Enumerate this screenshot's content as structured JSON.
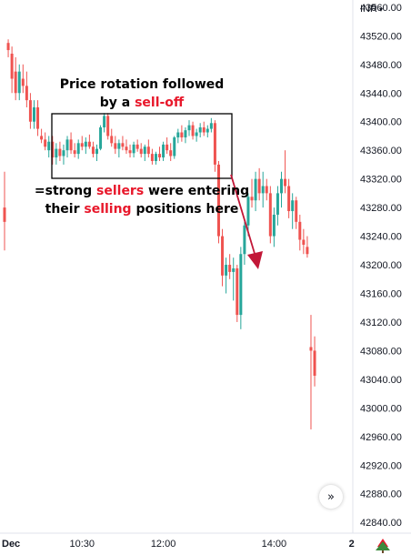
{
  "currency_label": "INR",
  "colors": {
    "up": "#26a69a",
    "down": "#ef5350",
    "annotation": "#c21737",
    "grid": "#f0f3fa",
    "box": "#000000"
  },
  "annotations": {
    "top_line1": "Price rotation followed",
    "top_line2_prefix": "by a ",
    "top_line2_red": "sell-off",
    "bottom_line1_prefix": "=strong ",
    "bottom_line1_red": "sellers",
    "bottom_line1_suffix": " were entering",
    "bottom_line2_prefix": "their ",
    "bottom_line2_red": "selling",
    "bottom_line2_suffix": " positions here"
  },
  "goto_realtime_icon": "double-chevron-right-icon",
  "logo_icon": "tree-icon",
  "chart_data": {
    "type": "candlestick",
    "y_ticks": [
      43560,
      43520,
      43480,
      43440,
      43400,
      43360,
      43320,
      43280,
      43240,
      43200,
      43160,
      43120,
      43080,
      43040,
      43000,
      42960,
      42920,
      42880,
      42840
    ],
    "y_tick_labels": [
      "43560.00",
      "43520.00",
      "43480.00",
      "43440.00",
      "43400.00",
      "43360.00",
      "43320.00",
      "43280.00",
      "43240.00",
      "43200.00",
      "43160.00",
      "43120.00",
      "43080.00",
      "43040.00",
      "43000.00",
      "42960.00",
      "42920.00",
      "42880.00",
      "42840.00"
    ],
    "ylim": [
      42825,
      43570
    ],
    "x_ticks": [
      {
        "label": "Dec",
        "index": 0
      },
      {
        "label": "10:30",
        "index": 21
      },
      {
        "label": "12:00",
        "index": 43
      },
      {
        "label": "14:00",
        "index": 73
      },
      {
        "label": "2",
        "index": 94
      }
    ],
    "grid": false,
    "candles": [
      [
        43280,
        43330,
        43220,
        43260
      ],
      [
        43510,
        43515,
        43490,
        43500
      ],
      [
        43495,
        43505,
        43440,
        43460
      ],
      [
        43470,
        43490,
        43430,
        43440
      ],
      [
        43440,
        43480,
        43430,
        43470
      ],
      [
        43460,
        43480,
        43440,
        43450
      ],
      [
        43450,
        43470,
        43420,
        43430
      ],
      [
        43430,
        43440,
        43390,
        43400
      ],
      [
        43400,
        43430,
        43390,
        43420
      ],
      [
        43420,
        43430,
        43380,
        43390
      ],
      [
        43380,
        43390,
        43370,
        43375
      ],
      [
        43375,
        43385,
        43360,
        43365
      ],
      [
        43360,
        43380,
        43350,
        43372
      ],
      [
        43372,
        43380,
        43340,
        43350
      ],
      [
        43350,
        43370,
        43340,
        43362
      ],
      [
        43362,
        43372,
        43345,
        43352
      ],
      [
        43352,
        43368,
        43340,
        43360
      ],
      [
        43360,
        43380,
        43350,
        43375
      ],
      [
        43375,
        43385,
        43355,
        43360
      ],
      [
        43360,
        43370,
        43350,
        43355
      ],
      [
        43355,
        43375,
        43348,
        43370
      ],
      [
        43370,
        43380,
        43360,
        43365
      ],
      [
        43365,
        43378,
        43355,
        43372
      ],
      [
        43372,
        43382,
        43362,
        43365
      ],
      [
        43365,
        43372,
        43350,
        43355
      ],
      [
        43355,
        43368,
        43345,
        43362
      ],
      [
        43362,
        43395,
        43360,
        43392
      ],
      [
        43392,
        43412,
        43385,
        43408
      ],
      [
        43408,
        43412,
        43375,
        43380
      ],
      [
        43380,
        43390,
        43365,
        43370
      ],
      [
        43370,
        43380,
        43355,
        43362
      ],
      [
        43362,
        43375,
        43350,
        43370
      ],
      [
        43370,
        43380,
        43360,
        43365
      ],
      [
        43365,
        43375,
        43355,
        43360
      ],
      [
        43360,
        43368,
        43350,
        43356
      ],
      [
        43356,
        43372,
        43350,
        43368
      ],
      [
        43368,
        43375,
        43358,
        43362
      ],
      [
        43362,
        43370,
        43350,
        43355
      ],
      [
        43355,
        43368,
        43345,
        43365
      ],
      [
        43365,
        43375,
        43350,
        43355
      ],
      [
        43355,
        43362,
        43340,
        43345
      ],
      [
        43345,
        43358,
        43340,
        43355
      ],
      [
        43355,
        43365,
        43345,
        43350
      ],
      [
        43350,
        43372,
        43345,
        43368
      ],
      [
        43368,
        43378,
        43355,
        43360
      ],
      [
        43360,
        43370,
        43345,
        43352
      ],
      [
        43352,
        43380,
        43348,
        43378
      ],
      [
        43378,
        43390,
        43370,
        43385
      ],
      [
        43385,
        43395,
        43372,
        43378
      ],
      [
        43378,
        43392,
        43370,
        43388
      ],
      [
        43388,
        43402,
        43380,
        43395
      ],
      [
        43395,
        43400,
        43375,
        43380
      ],
      [
        43380,
        43390,
        43372,
        43385
      ],
      [
        43385,
        43398,
        43378,
        43392
      ],
      [
        43392,
        43400,
        43380,
        43385
      ],
      [
        43385,
        43395,
        43378,
        43390
      ],
      [
        43390,
        43405,
        43385,
        43398
      ],
      [
        43398,
        43402,
        43330,
        43340
      ],
      [
        43340,
        43345,
        43230,
        43240
      ],
      [
        43240,
        43250,
        43170,
        43185
      ],
      [
        43185,
        43210,
        43160,
        43200
      ],
      [
        43200,
        43215,
        43180,
        43190
      ],
      [
        43190,
        43210,
        43150,
        43195
      ],
      [
        43195,
        43200,
        43120,
        43130
      ],
      [
        43130,
        43225,
        43110,
        43215
      ],
      [
        43215,
        43260,
        43200,
        43255
      ],
      [
        43255,
        43300,
        43240,
        43295
      ],
      [
        43295,
        43320,
        43280,
        43290
      ],
      [
        43290,
        43330,
        43275,
        43320
      ],
      [
        43320,
        43335,
        43290,
        43300
      ],
      [
        43300,
        43330,
        43280,
        43310
      ],
      [
        43310,
        43320,
        43290,
        43300
      ],
      [
        43300,
        43310,
        43230,
        43240
      ],
      [
        43240,
        43280,
        43225,
        43270
      ],
      [
        43270,
        43310,
        43255,
        43300
      ],
      [
        43300,
        43330,
        43280,
        43320
      ],
      [
        43320,
        43360,
        43300,
        43310
      ],
      [
        43310,
        43320,
        43265,
        43275
      ],
      [
        43275,
        43300,
        43250,
        43290
      ],
      [
        43290,
        43295,
        43250,
        43260
      ],
      [
        43260,
        43270,
        43220,
        43235
      ],
      [
        43235,
        43250,
        43215,
        43228
      ],
      [
        43225,
        43240,
        43210,
        43215
      ],
      [
        43085,
        43130,
        42970,
        43080
      ],
      [
        43080,
        43100,
        43030,
        43045
      ]
    ]
  }
}
